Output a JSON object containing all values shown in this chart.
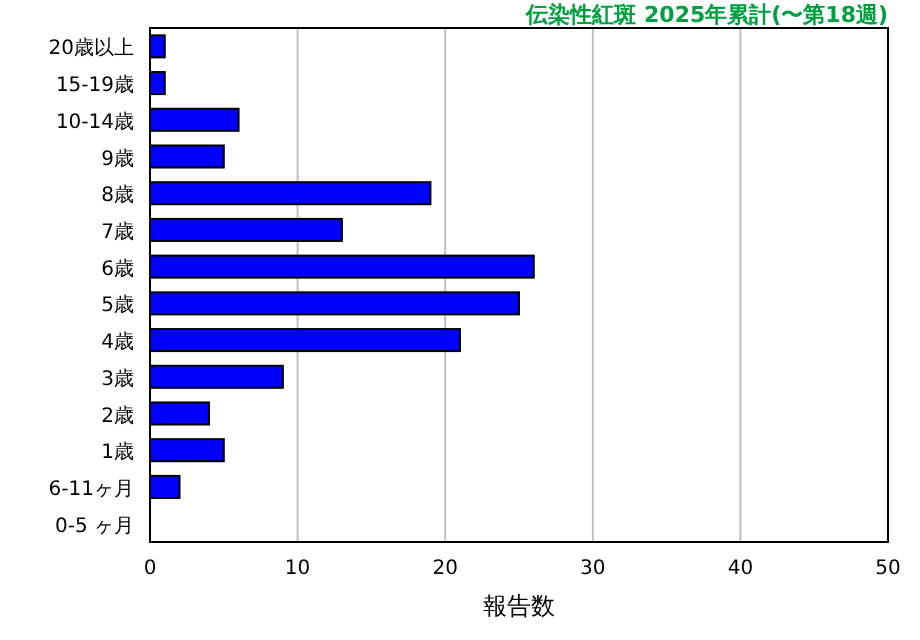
{
  "chart_data": {
    "type": "bar",
    "orientation": "horizontal",
    "title": "伝染性紅斑 2025年累計(〜第18週)",
    "xlabel": "報告数",
    "categories": [
      "20歳以上",
      "15-19歳",
      "10-14歳",
      "9歳",
      "8歳",
      "7歳",
      "6歳",
      "5歳",
      "4歳",
      "3歳",
      "2歳",
      "1歳",
      "6-11ヶ月",
      "0-5 ヶ月"
    ],
    "values": [
      1,
      1,
      6,
      5,
      19,
      13,
      26,
      25,
      21,
      9,
      4,
      5,
      2,
      0
    ],
    "color": "#0000ff",
    "xlim": [
      0,
      50
    ],
    "xticks": [
      0,
      10,
      20,
      30,
      40,
      50
    ],
    "grid": "x"
  }
}
